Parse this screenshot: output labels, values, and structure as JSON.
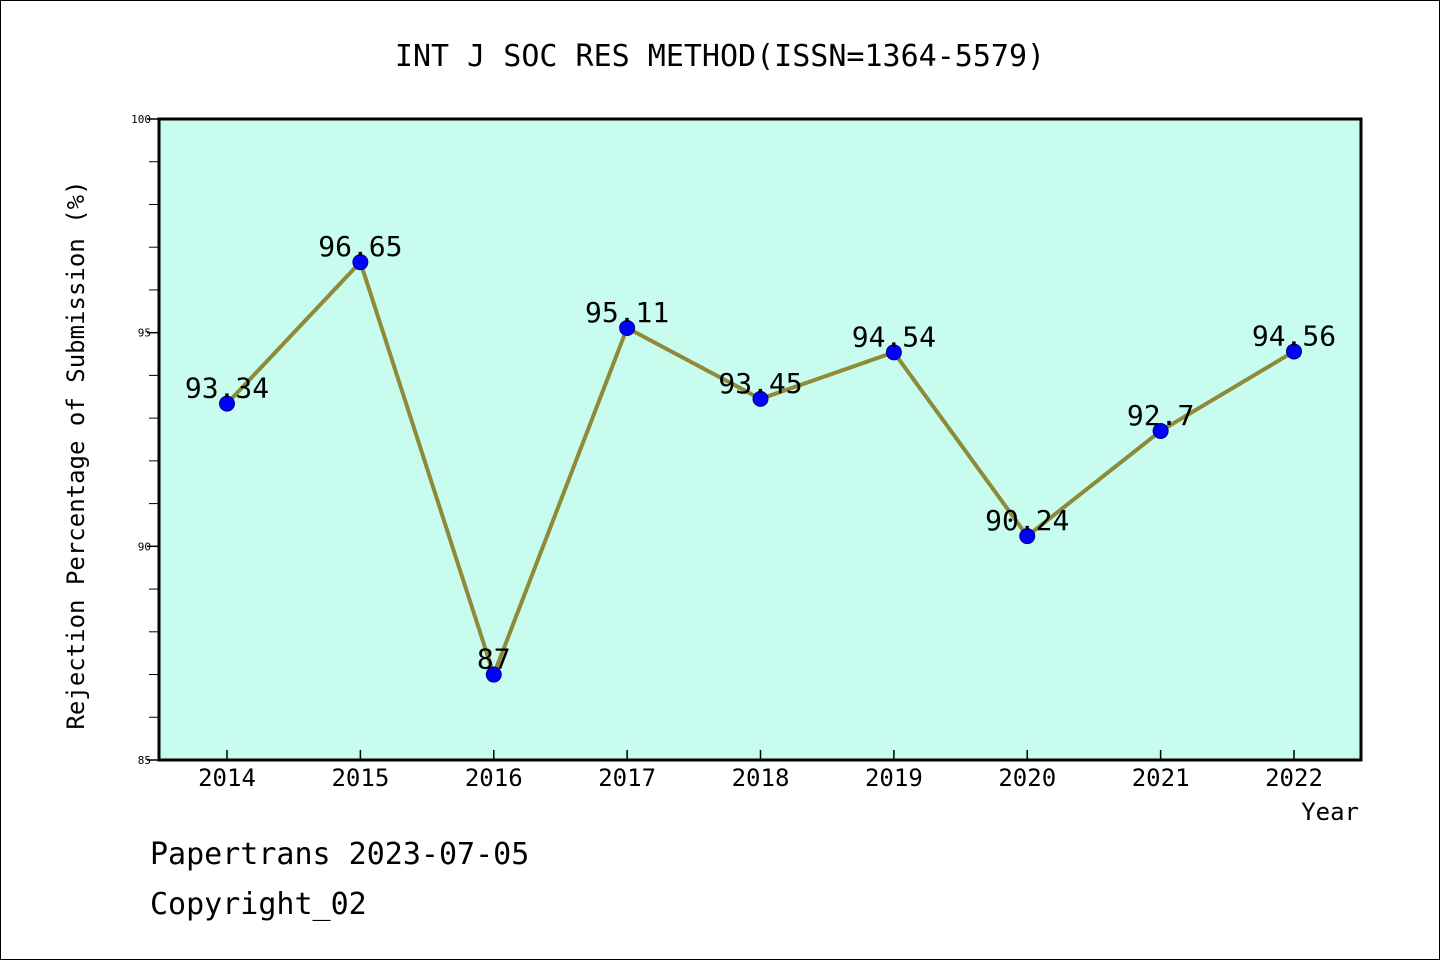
{
  "chart_data": {
    "type": "line",
    "title": "INT J SOC RES METHOD(ISSN=1364-5579)",
    "xlabel": "Year",
    "ylabel": "Rejection Percentage of Submission (%)",
    "categories": [
      "2014",
      "2015",
      "2016",
      "2017",
      "2018",
      "2019",
      "2020",
      "2021",
      "2022"
    ],
    "series": [
      {
        "values": [
          93.34,
          96.65,
          87,
          95.11,
          93.45,
          94.54,
          90.24,
          92.7,
          94.56
        ],
        "labels": [
          "93.34",
          "96.65",
          "87",
          "95.11",
          "93.45",
          "94.54",
          "90.24",
          "92.7",
          "94.56"
        ]
      }
    ],
    "ylim": [
      85,
      100
    ],
    "yticks": [
      "85",
      "90",
      "95",
      "100"
    ],
    "grid": false,
    "colors": {
      "plot_background": "#c8fcee",
      "line": "#8f8a3a",
      "marker": "#0000ff"
    }
  },
  "footer": {
    "line1": "Papertrans 2023-07-05",
    "line2": "Copyright_02"
  }
}
